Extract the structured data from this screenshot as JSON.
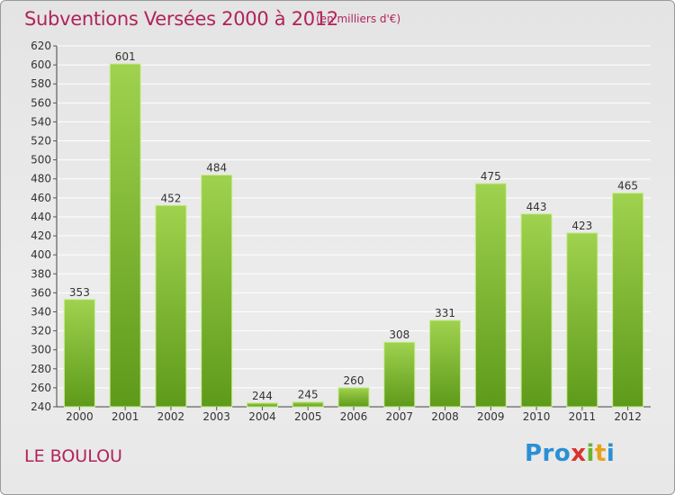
{
  "title": "Subventions Versées 2000 à 2012",
  "unit_note": "(en milliers d'€)",
  "commune": "LE BOULOU",
  "logo": {
    "p1": "Pro",
    "p2": "x",
    "p3": "i",
    "p4": "t",
    "p5": "i"
  },
  "colors": {
    "bar_light": "#9fd24e",
    "bar_dark": "#5e9a1a",
    "title": "#b1235a",
    "grid": "#ffffff"
  },
  "chart_data": {
    "type": "bar",
    "categories": [
      "2000",
      "2001",
      "2002",
      "2003",
      "2004",
      "2005",
      "2006",
      "2007",
      "2008",
      "2009",
      "2010",
      "2011",
      "2012"
    ],
    "values": [
      353,
      601,
      452,
      484,
      244,
      245,
      260,
      308,
      331,
      475,
      443,
      423,
      465
    ],
    "ylim": [
      240,
      620
    ],
    "ystep": 20,
    "grid": true,
    "data_labels": true
  }
}
